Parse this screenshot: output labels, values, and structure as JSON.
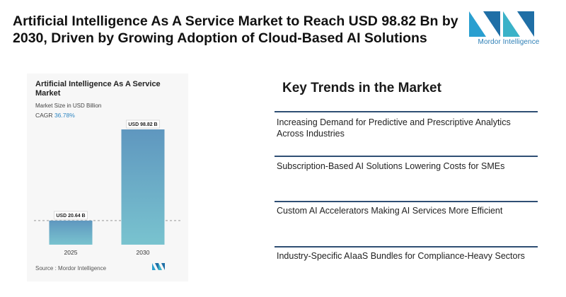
{
  "headline": "Artificial Intelligence As A Service Market to Reach USD 98.82 Bn by 2030, Driven by Growing Adoption of Cloud-Based AI Solutions",
  "logo": {
    "text": "Mordor Intelligence",
    "color": "#2d7fb6"
  },
  "trends": {
    "title": "Key Trends in the Market",
    "items": [
      "Increasing Demand for Predictive and Prescriptive Analytics Across Industries",
      "Subscription-Based AI Solutions Lowering Costs for SMEs",
      "Custom AI Accelerators Making AI Services More Efficient",
      "Industry-Specific AIaaS Bundles for Compliance-Heavy Sectors"
    ]
  },
  "chart_data": {
    "type": "bar",
    "title": "Artificial Intelligence As A Service Market",
    "subtitle": "Market Size in USD Billion",
    "cagr_label": "CAGR",
    "cagr_value": "36.78%",
    "categories": [
      "2025",
      "2030"
    ],
    "values": [
      20.64,
      98.82
    ],
    "data_labels": [
      "USD 20.64 B",
      "USD 98.82 B"
    ],
    "bar_color_top": "#5f97bf",
    "bar_color_bottom": "#79c3cf",
    "reference_line": "dashed at 2025 value",
    "source": "Source : Mordor Intelligence"
  }
}
